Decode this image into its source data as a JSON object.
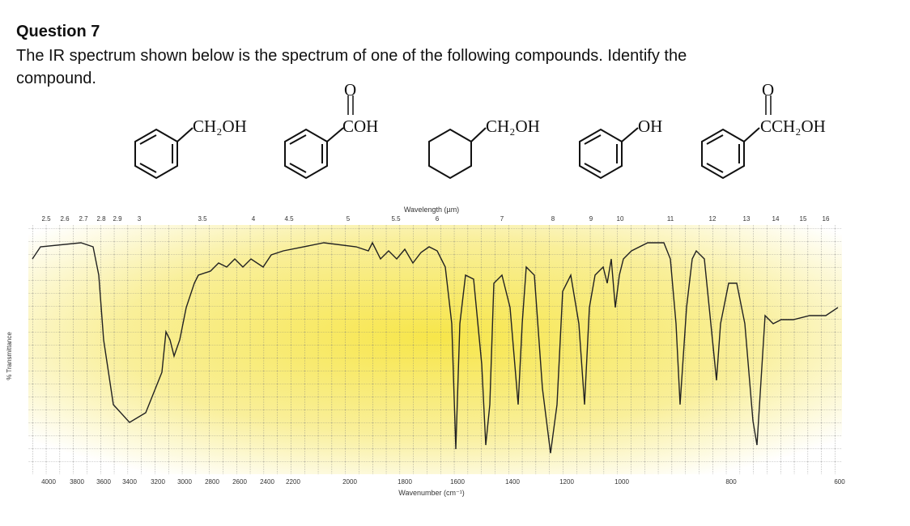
{
  "question": {
    "title": "Question 7",
    "text": "The IR spectrum shown below is the spectrum of one of the following compounds. Identify the compound."
  },
  "compounds": [
    {
      "label": "CH₂OH"
    },
    {
      "label": "COH",
      "carbonyl": "O"
    },
    {
      "label": "CH₂OH"
    },
    {
      "label": "OH"
    },
    {
      "label": "CCH₂OH",
      "carbonyl": "O"
    }
  ],
  "spectrum": {
    "wavelength_label": "Wavelength (µm)",
    "wavelength_ticks": [
      "2.5",
      "2.6",
      "2.7",
      "2.8",
      "2.9",
      "3",
      "3.5",
      "4",
      "4.5",
      "5",
      "5.5",
      "6",
      "7",
      "8",
      "9",
      "10",
      "11",
      "12",
      "13",
      "14",
      "15",
      "16"
    ],
    "wavenumber_label": "Wavenumber (cm⁻¹)",
    "wavenumber_ticks": [
      "4000",
      "3800",
      "3600",
      "3400",
      "3200",
      "3000",
      "2800",
      "2600",
      "2400",
      "2200",
      "2000",
      "1800",
      "1600",
      "1400",
      "1200",
      "1000",
      "800",
      "600"
    ],
    "y_label": "% Transmittance"
  }
}
